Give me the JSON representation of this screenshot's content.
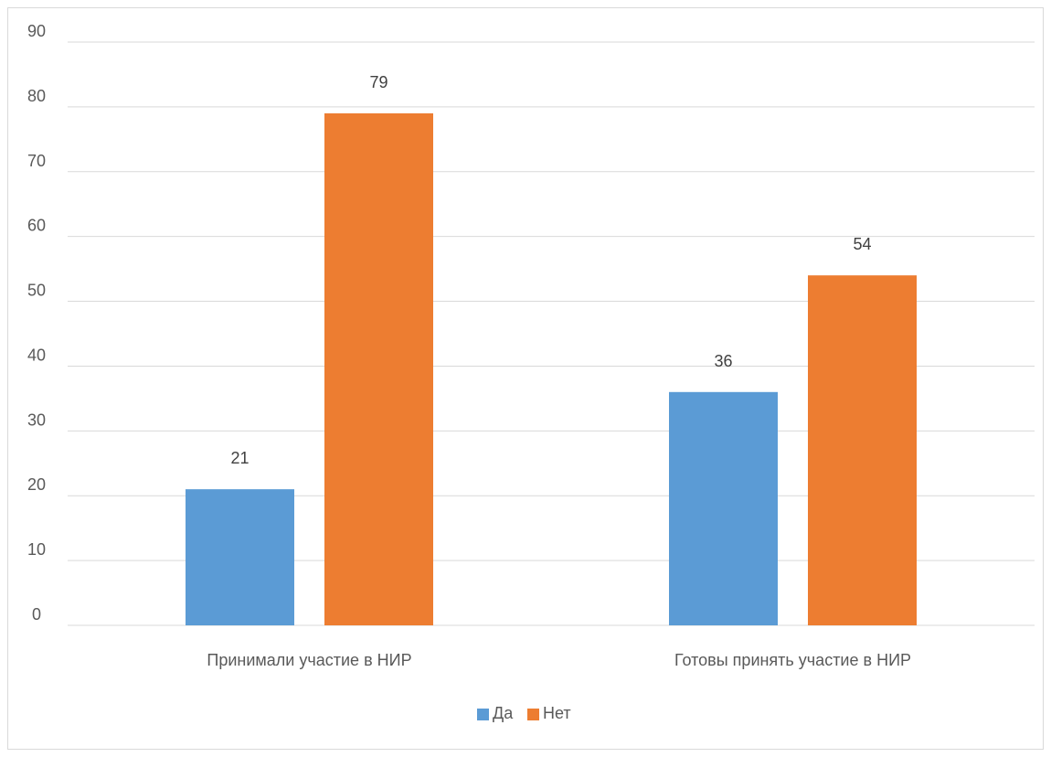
{
  "chart_data": {
    "type": "bar",
    "title": "",
    "xlabel": "",
    "ylabel": "",
    "categories": [
      "Принимали участие в НИР",
      "Готовы принять участие в НИР"
    ],
    "series": [
      {
        "name": "Да",
        "values": [
          21,
          36
        ],
        "color": "#5b9bd5"
      },
      {
        "name": "Нет",
        "values": [
          79,
          54
        ],
        "color": "#ed7d31"
      }
    ],
    "ylim": [
      0,
      90
    ],
    "yticks": [
      0,
      10,
      20,
      30,
      40,
      50,
      60,
      70,
      80,
      90
    ],
    "grid": true,
    "legend_position": "bottom",
    "data_labels": true
  }
}
